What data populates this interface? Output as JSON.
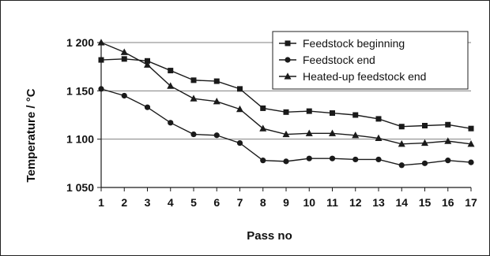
{
  "chart_data": {
    "type": "line",
    "title": "",
    "xlabel": "Pass no",
    "ylabel": "Temperature / °C",
    "x": [
      1,
      2,
      3,
      4,
      5,
      6,
      7,
      8,
      9,
      10,
      11,
      12,
      13,
      14,
      15,
      16,
      17
    ],
    "x_tick_labels": [
      "1",
      "2",
      "3",
      "4",
      "5",
      "6",
      "7",
      "8",
      "9",
      "10",
      "11",
      "12",
      "13",
      "14",
      "15",
      "16",
      "17"
    ],
    "ylim": [
      1050,
      1200
    ],
    "y_ticks": [
      1050,
      1100,
      1150,
      1200
    ],
    "y_tick_labels": [
      "1 050",
      "1 100",
      "1 150",
      "1 200"
    ],
    "grid": "horizontal",
    "legend_position": "top-right",
    "series": [
      {
        "name": "Feedstock beginning",
        "marker": "square",
        "values": [
          1182,
          1183,
          1181,
          1171,
          1161,
          1160,
          1152,
          1132,
          1128,
          1129,
          1127,
          1125,
          1121,
          1113,
          1114,
          1115,
          1111
        ]
      },
      {
        "name": "Feedstock end",
        "marker": "circle",
        "values": [
          1152,
          1145,
          1133,
          1117,
          1105,
          1104,
          1096,
          1078,
          1077,
          1080,
          1080,
          1079,
          1079,
          1073,
          1075,
          1078,
          1076
        ]
      },
      {
        "name": "Heated-up feedstock end",
        "marker": "triangle",
        "values": [
          1200,
          1190,
          1177,
          1155,
          1142,
          1139,
          1131,
          1111,
          1105,
          1106,
          1106,
          1104,
          1101,
          1095,
          1096,
          1098,
          1095
        ]
      }
    ],
    "colors": {
      "line": "#1a1a1a",
      "grid": "#7f7f7f",
      "axis": "#1a1a1a"
    }
  }
}
